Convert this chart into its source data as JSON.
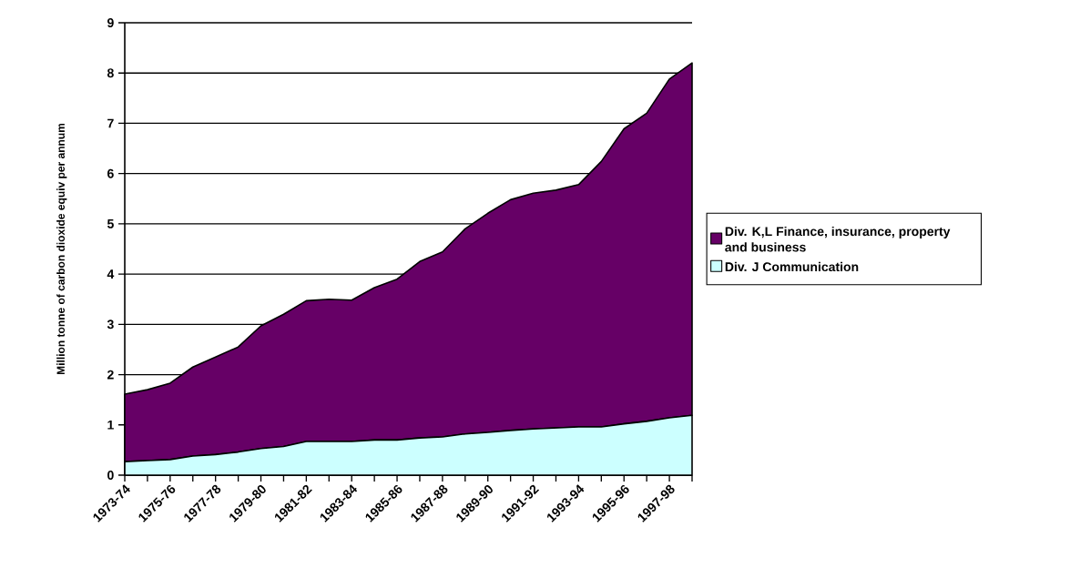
{
  "chart_data": {
    "type": "area",
    "stacked": true,
    "ylabel": "Million tonne of carbon dioxide equiv per annum",
    "categories": [
      "1973-74",
      null,
      "1975-76",
      null,
      "1977-78",
      null,
      "1979-80",
      null,
      "1981-82",
      null,
      "1983-84",
      null,
      "1985-86",
      null,
      "1987-88",
      null,
      "1989-90",
      null,
      "1991-92",
      null,
      "1993-94",
      null,
      "1995-96",
      null,
      "1997-98",
      null
    ],
    "series": [
      {
        "name": "Div. J Communication",
        "color": "#ccffff",
        "values": [
          0.27,
          0.29,
          0.31,
          0.38,
          0.41,
          0.46,
          0.53,
          0.57,
          0.67,
          0.67,
          0.67,
          0.7,
          0.7,
          0.74,
          0.76,
          0.82,
          0.85,
          0.89,
          0.92,
          0.94,
          0.96,
          0.96,
          1.02,
          1.07,
          1.14,
          1.19
        ]
      },
      {
        "name": "Div. K,L Finance, insurance, property and business",
        "color": "#660066",
        "values": [
          1.34,
          1.41,
          1.52,
          1.77,
          1.94,
          2.09,
          2.44,
          2.63,
          2.8,
          2.83,
          2.81,
          3.03,
          3.2,
          3.51,
          3.68,
          4.08,
          4.36,
          4.59,
          4.69,
          4.73,
          4.82,
          5.28,
          5.87,
          6.13,
          6.74,
          7.01
        ]
      }
    ],
    "ylim": [
      0,
      9
    ],
    "yticks": [
      0,
      1,
      2,
      3,
      4,
      5,
      6,
      7,
      8,
      9
    ],
    "grid": "y",
    "legend": "right"
  }
}
